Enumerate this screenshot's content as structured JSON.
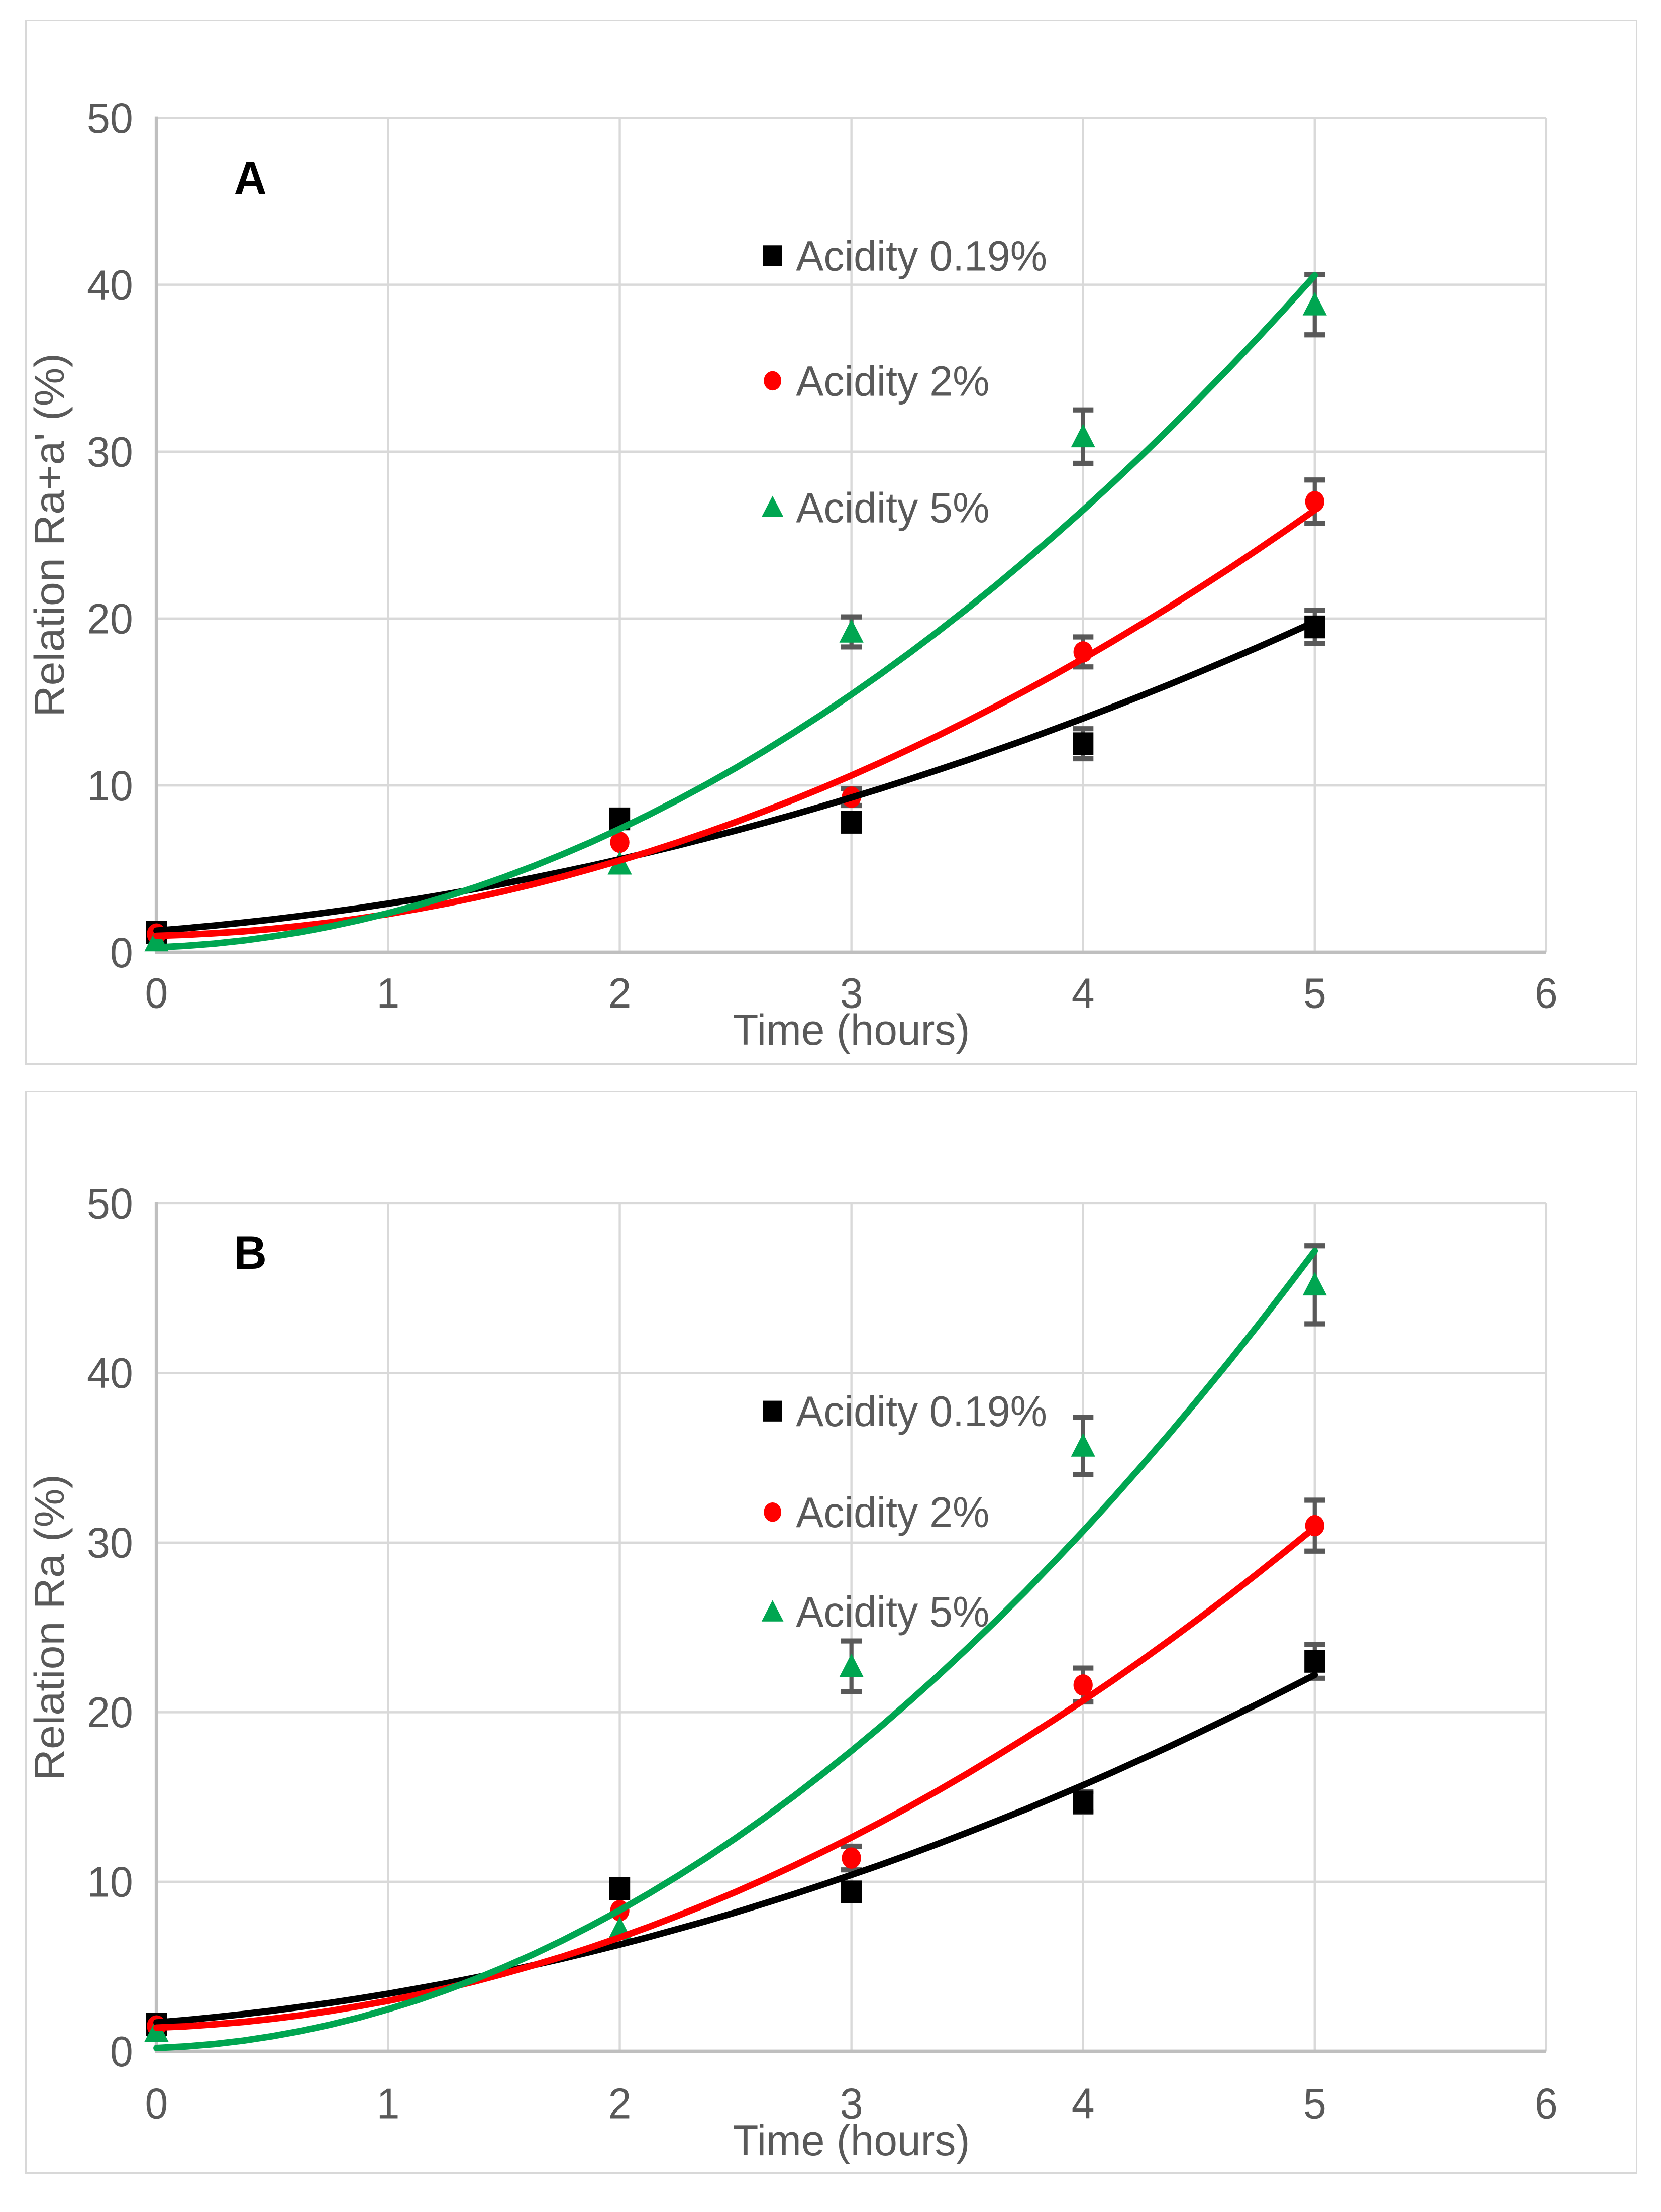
{
  "page": {
    "background": "#FFFFFF"
  },
  "palette": {
    "series_black": "#000000",
    "series_red": "#FF0000",
    "series_green": "#00A651",
    "text_gray": "#595959",
    "gridline": "#D9D9D9",
    "axis_line": "#BFBFBF",
    "error_bar": "#595959",
    "panel_border": "#D8D8D8"
  },
  "chart_data": [
    {
      "type": "scatter",
      "panel_label": "A",
      "xlabel": "Time (hours)",
      "ylabel": "Relation Ra+a' (%)",
      "xlim": [
        0,
        6
      ],
      "ylim": [
        0,
        50
      ],
      "xticks": [
        "0",
        "1",
        "2",
        "3",
        "4",
        "5",
        "6"
      ],
      "yticks": [
        "0",
        "10",
        "20",
        "30",
        "40",
        "50"
      ],
      "grid": true,
      "legend_position": "inside-top-center",
      "x": [
        0,
        2,
        3,
        4,
        5
      ],
      "series": [
        {
          "name": "Acidity 0.19%",
          "marker": "square",
          "color": "#000000",
          "values": [
            1.2,
            8.0,
            7.8,
            12.5,
            19.5
          ],
          "errors": [
            0.2,
            0.3,
            0.4,
            0.9,
            1.0
          ],
          "trendline": {
            "type": "polynomial",
            "coefficients": [
              1.3,
              1.1,
              0.52
            ]
          }
        },
        {
          "name": "Acidity 2%",
          "marker": "circle",
          "color": "#FF0000",
          "values": [
            1.1,
            6.6,
            9.3,
            18.0,
            27.0
          ],
          "errors": [
            0.2,
            0.3,
            0.5,
            0.9,
            1.3
          ],
          "trendline": {
            "type": "polynomial",
            "coefficients": [
              1.0,
              0.35,
              0.95
            ]
          }
        },
        {
          "name": "Acidity 5%",
          "marker": "triangle",
          "color": "#00A651",
          "values": [
            0.7,
            5.3,
            19.2,
            30.9,
            38.8
          ],
          "errors": [
            0.2,
            0.3,
            0.9,
            1.6,
            1.8
          ],
          "trendline": {
            "type": "polynomial",
            "coefficients": [
              0.3,
              0.55,
              1.5
            ]
          }
        }
      ]
    },
    {
      "type": "scatter",
      "panel_label": "B",
      "xlabel": "Time (hours)",
      "ylabel": "Relation Ra (%)",
      "xlim": [
        0,
        6
      ],
      "ylim": [
        0,
        50
      ],
      "xticks": [
        "0",
        "1",
        "2",
        "3",
        "4",
        "5",
        "6"
      ],
      "yticks": [
        "0",
        "10",
        "20",
        "30",
        "40",
        "50"
      ],
      "grid": true,
      "legend_position": "inside-top-center",
      "x": [
        0,
        2,
        3,
        4,
        5
      ],
      "series": [
        {
          "name": "Acidity 0.19%",
          "marker": "square",
          "color": "#000000",
          "values": [
            1.6,
            9.6,
            9.4,
            14.7,
            23.0
          ],
          "errors": [
            0.2,
            0.3,
            0.4,
            0.6,
            1.0
          ],
          "trendline": {
            "type": "polynomial",
            "coefficients": [
              1.7,
              1.1,
              0.6
            ]
          }
        },
        {
          "name": "Acidity 2%",
          "marker": "circle",
          "color": "#FF0000",
          "values": [
            1.5,
            8.3,
            11.4,
            21.6,
            31.0
          ],
          "errors": [
            0.2,
            0.3,
            0.7,
            1.0,
            1.5
          ],
          "trendline": {
            "type": "polynomial",
            "coefficients": [
              1.4,
              0.5,
              1.08
            ]
          }
        },
        {
          "name": "Acidity 5%",
          "marker": "triangle",
          "color": "#00A651",
          "values": [
            1.2,
            7.2,
            22.7,
            35.7,
            45.2
          ],
          "errors": [
            0.2,
            0.3,
            1.5,
            1.7,
            2.3
          ],
          "trendline": {
            "type": "polynomial",
            "coefficients": [
              0.2,
              0.5,
              1.78
            ]
          }
        }
      ]
    }
  ]
}
